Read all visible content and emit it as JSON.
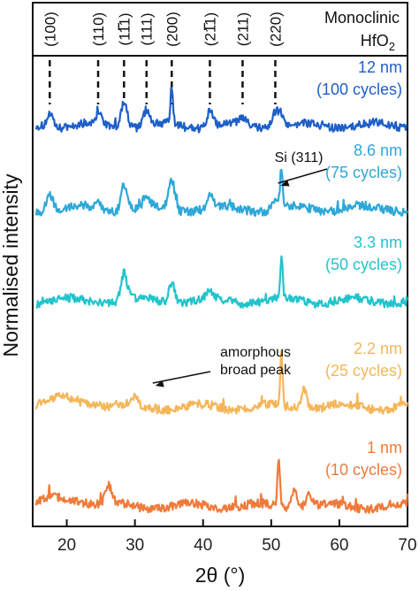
{
  "chart_data": {
    "type": "line",
    "xlabel": "2θ (°)",
    "ylabel": "Normalised intensity",
    "xlim": [
      15,
      70
    ],
    "x_ticks": [
      "20",
      "30",
      "40",
      "50",
      "60",
      "70"
    ],
    "x_tick_values": [
      20,
      30,
      40,
      50,
      60,
      70
    ],
    "header": {
      "line1": "Monoclinic",
      "line2_base": "HfO",
      "line2_sub": "2"
    },
    "reference_peaks": [
      {
        "label": "(100)",
        "x": 17.5,
        "bar": false
      },
      {
        "label": "(110)",
        "x": 24.6,
        "bar": false
      },
      {
        "label": "(111)",
        "x": 28.4,
        "bar": true
      },
      {
        "label": "(111)",
        "x": 31.7,
        "bar": false
      },
      {
        "label": "(200)",
        "x": 35.4,
        "bar": false
      },
      {
        "label": "(211)",
        "x": 41.0,
        "bar": true
      },
      {
        "label": "(211)",
        "x": 45.8,
        "bar": false
      },
      {
        "label": "(220)",
        "x": 50.6,
        "bar": false
      }
    ],
    "series": [
      {
        "name": "12 nm",
        "sub": "(100 cycles)",
        "color": "#1e5fc8",
        "peaks": [
          [
            17.5,
            0.7
          ],
          [
            24.6,
            0.5
          ],
          [
            28.4,
            1.4
          ],
          [
            31.7,
            0.8
          ],
          [
            35.4,
            1.9
          ],
          [
            41.0,
            0.8
          ],
          [
            45.8,
            0.3
          ],
          [
            50.6,
            0.8
          ],
          [
            51.5,
            0.6
          ]
        ]
      },
      {
        "name": "8.6 nm",
        "sub": "(75 cycles)",
        "color": "#2ea8d8",
        "peaks": [
          [
            17.5,
            0.9
          ],
          [
            24.6,
            0.3
          ],
          [
            28.4,
            1.3
          ],
          [
            31.7,
            0.6
          ],
          [
            35.4,
            1.5
          ],
          [
            41.0,
            0.6
          ],
          [
            50.6,
            0.5
          ],
          [
            51.5,
            2.0
          ]
        ]
      },
      {
        "name": "3.3 nm",
        "sub": "(50 cycles)",
        "color": "#22c4cc",
        "peaks": [
          [
            28.4,
            1.4
          ],
          [
            35.4,
            1.0
          ],
          [
            41.0,
            0.4
          ],
          [
            51.5,
            2.2
          ]
        ]
      },
      {
        "name": "2.2 nm",
        "sub": "(25 cycles)",
        "color": "#f5b65a",
        "peaks": [
          [
            30.0,
            0.35
          ],
          [
            51.5,
            2.6
          ],
          [
            54.8,
            1.1
          ]
        ]
      },
      {
        "name": "1 nm",
        "sub": "(10 cycles)",
        "color": "#f07a3a",
        "peaks": [
          [
            26.1,
            0.9
          ],
          [
            51.1,
            2.6
          ],
          [
            53.4,
            1.0
          ],
          [
            55.5,
            0.7
          ]
        ]
      }
    ],
    "annotations": [
      {
        "text_lines": [
          "Si (311)"
        ],
        "target_series": 1,
        "target_x": 51.4
      },
      {
        "text_lines": [
          "amorphous",
          "broad peak"
        ],
        "target_series": 3,
        "target_x": 33.0
      }
    ]
  }
}
